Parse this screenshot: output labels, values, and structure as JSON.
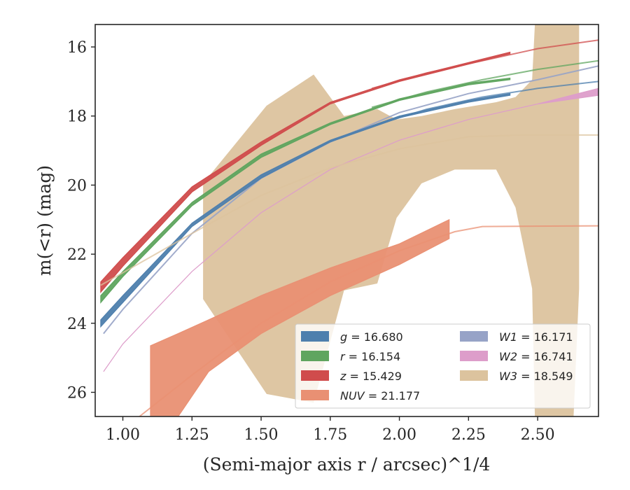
{
  "chart_data": {
    "type": "area",
    "xlabel": "(Semi-major axis r / arcsec)^1/4",
    "ylabel": "m(<r) (mag)",
    "xlim": [
      0.9,
      2.72
    ],
    "ylim": [
      26.7,
      15.35
    ],
    "y_inverted": true,
    "grid": false,
    "legend_position": "lower-right",
    "xticks": [
      "1.00",
      "1.25",
      "1.50",
      "1.75",
      "2.00",
      "2.25",
      "2.50"
    ],
    "xtick_values": [
      1.0,
      1.25,
      1.5,
      1.75,
      2.0,
      2.25,
      2.5
    ],
    "yticks": [
      "16",
      "18",
      "20",
      "22",
      "24",
      "26"
    ],
    "ytick_values": [
      16,
      18,
      20,
      22,
      24,
      26
    ],
    "series": [
      {
        "name": "g",
        "label_value": "16.680",
        "color": "#4e7fad",
        "kind": "band",
        "data": [
          [
            0.92,
            23.9,
            24.1
          ],
          [
            1.0,
            23.2,
            23.4
          ],
          [
            1.25,
            21.1,
            21.2
          ],
          [
            1.5,
            19.7,
            19.8
          ],
          [
            1.75,
            18.7,
            18.75
          ],
          [
            2.0,
            18.0,
            18.05
          ],
          [
            2.25,
            17.55,
            17.6
          ],
          [
            2.4,
            17.35,
            17.4
          ]
        ],
        "model": [
          [
            1.9,
            18.3
          ],
          [
            2.1,
            17.8
          ],
          [
            2.3,
            17.45
          ],
          [
            2.5,
            17.2
          ],
          [
            2.72,
            17.0
          ]
        ]
      },
      {
        "name": "r",
        "label_value": "16.154",
        "color": "#5fa55f",
        "kind": "band",
        "data": [
          [
            0.92,
            23.2,
            23.4
          ],
          [
            1.0,
            22.5,
            22.65
          ],
          [
            1.25,
            20.5,
            20.6
          ],
          [
            1.5,
            19.1,
            19.2
          ],
          [
            1.75,
            18.2,
            18.25
          ],
          [
            2.0,
            17.5,
            17.55
          ],
          [
            2.25,
            17.05,
            17.1
          ],
          [
            2.4,
            16.9,
            16.95
          ]
        ],
        "model": [
          [
            1.9,
            17.75
          ],
          [
            2.1,
            17.3
          ],
          [
            2.3,
            16.95
          ],
          [
            2.5,
            16.65
          ],
          [
            2.72,
            16.4
          ]
        ]
      },
      {
        "name": "z",
        "label_value": "15.429",
        "color": "#d04c4c",
        "kind": "band",
        "data": [
          [
            0.92,
            22.8,
            23.1
          ],
          [
            1.0,
            22.1,
            22.35
          ],
          [
            1.25,
            20.05,
            20.2
          ],
          [
            1.5,
            18.75,
            18.85
          ],
          [
            1.75,
            17.6,
            17.65
          ],
          [
            2.0,
            16.95,
            17.0
          ],
          [
            2.25,
            16.45,
            16.5
          ],
          [
            2.4,
            16.15,
            16.2
          ]
        ],
        "model": [
          [
            1.9,
            17.2
          ],
          [
            2.1,
            16.75
          ],
          [
            2.3,
            16.4
          ],
          [
            2.5,
            16.05
          ],
          [
            2.72,
            15.8
          ]
        ]
      },
      {
        "name": "NUV",
        "label_value": "21.177",
        "color": "#e99073",
        "kind": "band",
        "data": [
          [
            1.1,
            24.65,
            26.7
          ],
          [
            1.2,
            24.3,
            26.7
          ],
          [
            1.31,
            23.9,
            25.4
          ],
          [
            1.5,
            23.2,
            24.3
          ],
          [
            1.75,
            22.4,
            23.2
          ],
          [
            2.0,
            21.7,
            22.3
          ],
          [
            2.18,
            21.0,
            21.55
          ]
        ],
        "model": [
          [
            1.06,
            26.7
          ],
          [
            1.25,
            25.5
          ],
          [
            1.5,
            24.0
          ],
          [
            1.75,
            22.8
          ],
          [
            2.0,
            21.9
          ],
          [
            2.2,
            21.35
          ],
          [
            2.3,
            21.2
          ],
          [
            2.72,
            21.18
          ]
        ]
      },
      {
        "name": "W1",
        "label_value": "16.171",
        "color": "#97a3c7",
        "kind": "band",
        "data": [
          [
            0.93,
            24.3,
            24.3
          ],
          [
            1.0,
            23.6,
            23.6
          ],
          [
            1.25,
            21.4,
            21.4
          ],
          [
            1.5,
            19.8,
            19.8
          ],
          [
            1.75,
            18.75,
            18.75
          ],
          [
            2.0,
            17.9,
            17.9
          ],
          [
            2.25,
            17.35,
            17.35
          ],
          [
            2.5,
            16.95,
            16.95
          ],
          [
            2.72,
            16.55,
            16.55
          ]
        ],
        "model": []
      },
      {
        "name": "W2",
        "label_value": "16.741",
        "color": "#dd9dca",
        "kind": "band",
        "data": [
          [
            0.93,
            25.4,
            25.4
          ],
          [
            1.0,
            24.6,
            24.6
          ],
          [
            1.25,
            22.5,
            22.5
          ],
          [
            1.5,
            20.8,
            20.8
          ],
          [
            1.75,
            19.55,
            19.55
          ],
          [
            2.0,
            18.7,
            18.7
          ],
          [
            2.25,
            18.1,
            18.1
          ],
          [
            2.5,
            17.65,
            17.65
          ],
          [
            2.72,
            17.2,
            17.4
          ]
        ],
        "model": []
      },
      {
        "name": "W3",
        "label_value": "18.549",
        "color": "#dcc39e",
        "kind": "band",
        "data": [
          [
            1.29,
            19.95,
            23.3
          ],
          [
            1.52,
            17.7,
            26.05
          ],
          [
            1.69,
            16.8,
            26.3
          ],
          [
            1.8,
            18.0,
            23.05
          ],
          [
            1.92,
            17.8,
            22.85
          ],
          [
            1.99,
            18.1,
            20.95
          ],
          [
            2.08,
            18.0,
            19.95
          ],
          [
            2.2,
            17.8,
            19.55
          ],
          [
            2.35,
            17.6,
            19.55
          ],
          [
            2.42,
            17.45,
            20.65
          ],
          [
            2.48,
            16.95,
            23.0
          ],
          [
            2.49,
            15.35,
            26.7
          ],
          [
            2.63,
            15.35,
            26.7
          ],
          [
            2.65,
            15.35,
            23.0
          ]
        ],
        "model": [
          [
            0.92,
            22.9
          ],
          [
            1.25,
            21.4
          ],
          [
            1.5,
            20.3
          ],
          [
            1.75,
            19.5
          ],
          [
            2.0,
            18.95
          ],
          [
            2.25,
            18.6
          ],
          [
            2.45,
            18.55
          ],
          [
            2.72,
            18.55
          ]
        ]
      }
    ]
  }
}
